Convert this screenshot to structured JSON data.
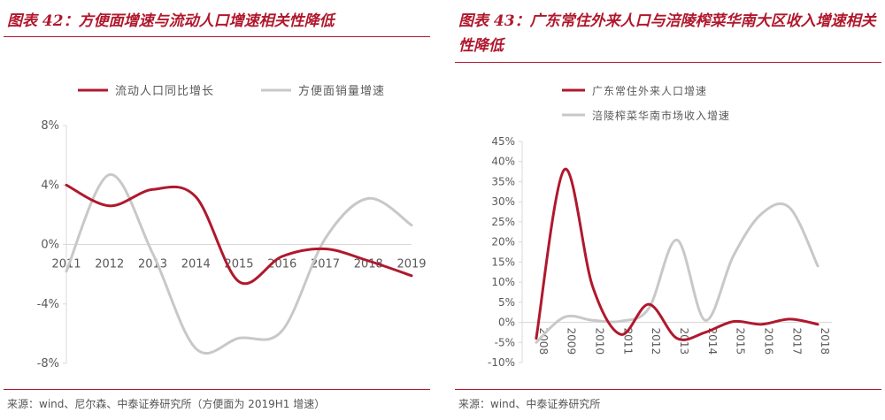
{
  "left": {
    "title": "图表 42：方便面增速与流动人口增速相关性降低",
    "source": "来源：wind、尼尔森、中泰证券研究所（方便面为 2019H1 增速）"
  },
  "right": {
    "title": "图表 43：广东常住外来人口与涪陵榨菜华南大区收入增速相关性降低",
    "source": "来源：wind、中泰证券研究所"
  },
  "colors": {
    "red": "#b0182d",
    "gray": "#c8c8c8",
    "axis": "#d9d9d9",
    "text": "#595959"
  },
  "chart_data": [
    {
      "type": "line",
      "x": [
        "2011",
        "2012",
        "2013",
        "2014",
        "2015",
        "2016",
        "2017",
        "2018",
        "2019"
      ],
      "ylim": [
        -8,
        8
      ],
      "yticks": [
        8,
        4,
        0,
        -4,
        -8
      ],
      "ytick_labels": [
        "8%",
        "4%",
        "0%",
        "-4%",
        "-8%"
      ],
      "grid": false,
      "legend": "top",
      "series": [
        {
          "name": "流动人口同比增长",
          "color": "#b0182d",
          "values": [
            4.0,
            2.6,
            3.7,
            3.2,
            -2.5,
            -0.8,
            -0.3,
            -1.1,
            -2.1
          ]
        },
        {
          "name": "方便面销量增速",
          "color": "#c8c8c8",
          "values": [
            -1.8,
            4.7,
            -0.6,
            -7.0,
            -6.3,
            -5.8,
            0.4,
            3.1,
            1.3
          ]
        }
      ]
    },
    {
      "type": "line",
      "x": [
        "2008",
        "2009",
        "2010",
        "2011",
        "2012",
        "2013",
        "2014",
        "2015",
        "2016",
        "2017",
        "2018"
      ],
      "ylim": [
        -10,
        45
      ],
      "yticks": [
        45,
        40,
        35,
        30,
        25,
        20,
        15,
        10,
        5,
        0,
        -5,
        -10
      ],
      "ytick_labels": [
        "45%",
        "40%",
        "35%",
        "30%",
        "25%",
        "20%",
        "15%",
        "10%",
        "5%",
        "0%",
        "-5%",
        "-10%"
      ],
      "grid": false,
      "legend": "top",
      "series": [
        {
          "name": "广东常住外来人口增速",
          "color": "#b0182d",
          "values": [
            -4.0,
            38.0,
            9.0,
            -3.0,
            4.5,
            -4.0,
            -2.5,
            0.2,
            -0.5,
            0.8,
            -0.5
          ]
        },
        {
          "name": "涪陵榨菜华南市场收入增速",
          "color": "#c8c8c8",
          "values": [
            -5.0,
            1.3,
            0.5,
            0.3,
            3.5,
            20.5,
            0.5,
            16.5,
            27.0,
            28.5,
            14.0
          ]
        }
      ]
    }
  ]
}
